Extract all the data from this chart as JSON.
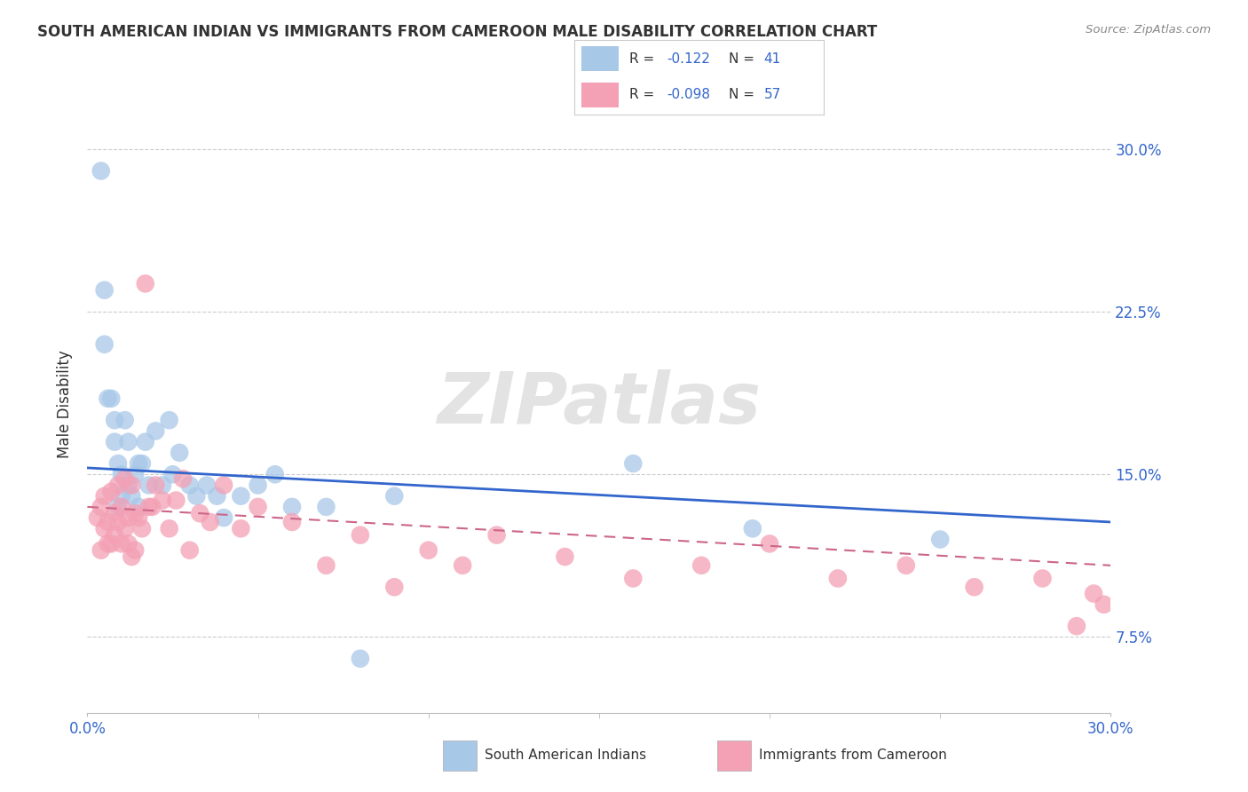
{
  "title": "SOUTH AMERICAN INDIAN VS IMMIGRANTS FROM CAMEROON MALE DISABILITY CORRELATION CHART",
  "source": "Source: ZipAtlas.com",
  "ylabel": "Male Disability",
  "xlim": [
    0.0,
    0.3
  ],
  "ylim": [
    0.04,
    0.325
  ],
  "color_blue": "#a8c8e8",
  "color_pink": "#f4a0b5",
  "line_blue": "#3366cc",
  "line_pink": "#cc6688",
  "tick_color": "#3366cc",
  "title_color": "#333333",
  "watermark_text": "ZIPatlas",
  "blue_R": "-0.122",
  "blue_N": "41",
  "pink_R": "-0.098",
  "pink_N": "57",
  "blue_scatter_x": [
    0.004,
    0.005,
    0.006,
    0.007,
    0.008,
    0.008,
    0.009,
    0.01,
    0.01,
    0.011,
    0.012,
    0.012,
    0.013,
    0.014,
    0.015,
    0.016,
    0.017,
    0.018,
    0.02,
    0.022,
    0.025,
    0.027,
    0.03,
    0.032,
    0.035,
    0.04,
    0.045,
    0.05,
    0.055,
    0.06,
    0.07,
    0.08,
    0.09,
    0.16,
    0.195,
    0.25,
    0.005,
    0.009,
    0.015,
    0.024,
    0.038
  ],
  "blue_scatter_y": [
    0.29,
    0.235,
    0.185,
    0.185,
    0.175,
    0.165,
    0.155,
    0.15,
    0.14,
    0.175,
    0.145,
    0.165,
    0.14,
    0.15,
    0.155,
    0.155,
    0.165,
    0.145,
    0.17,
    0.145,
    0.15,
    0.16,
    0.145,
    0.14,
    0.145,
    0.13,
    0.14,
    0.145,
    0.15,
    0.135,
    0.135,
    0.065,
    0.14,
    0.155,
    0.125,
    0.12,
    0.21,
    0.135,
    0.135,
    0.175,
    0.14
  ],
  "pink_scatter_x": [
    0.003,
    0.004,
    0.004,
    0.005,
    0.005,
    0.006,
    0.006,
    0.007,
    0.007,
    0.008,
    0.008,
    0.009,
    0.009,
    0.01,
    0.01,
    0.011,
    0.011,
    0.012,
    0.012,
    0.013,
    0.013,
    0.014,
    0.014,
    0.015,
    0.016,
    0.017,
    0.018,
    0.019,
    0.02,
    0.022,
    0.024,
    0.026,
    0.028,
    0.03,
    0.033,
    0.036,
    0.04,
    0.045,
    0.05,
    0.06,
    0.07,
    0.08,
    0.09,
    0.1,
    0.11,
    0.12,
    0.14,
    0.16,
    0.18,
    0.2,
    0.22,
    0.24,
    0.26,
    0.28,
    0.29,
    0.295,
    0.298
  ],
  "pink_scatter_y": [
    0.13,
    0.135,
    0.115,
    0.125,
    0.14,
    0.118,
    0.128,
    0.118,
    0.142,
    0.122,
    0.132,
    0.128,
    0.145,
    0.118,
    0.135,
    0.125,
    0.148,
    0.13,
    0.118,
    0.145,
    0.112,
    0.132,
    0.115,
    0.13,
    0.125,
    0.238,
    0.135,
    0.135,
    0.145,
    0.138,
    0.125,
    0.138,
    0.148,
    0.115,
    0.132,
    0.128,
    0.145,
    0.125,
    0.135,
    0.128,
    0.108,
    0.122,
    0.098,
    0.115,
    0.108,
    0.122,
    0.112,
    0.102,
    0.108,
    0.118,
    0.102,
    0.108,
    0.098,
    0.102,
    0.08,
    0.095,
    0.09
  ],
  "blue_line_x": [
    0.0,
    0.3
  ],
  "blue_line_y": [
    0.153,
    0.128
  ],
  "pink_line_x": [
    0.0,
    0.3
  ],
  "pink_line_y": [
    0.135,
    0.108
  ],
  "ytick_positions": [
    0.075,
    0.15,
    0.225,
    0.3
  ],
  "ytick_labels": [
    "7.5%",
    "15.0%",
    "22.5%",
    "30.0%"
  ],
  "xtick_positions": [
    0.0,
    0.3
  ],
  "xtick_labels": [
    "0.0%",
    "30.0%"
  ]
}
